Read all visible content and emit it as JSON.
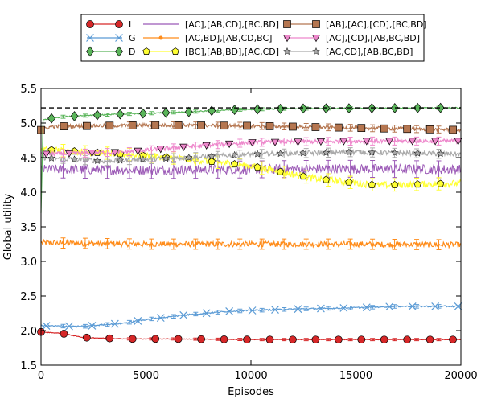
{
  "chart_data": {
    "type": "line",
    "title": "",
    "xlabel": "Episodes",
    "ylabel": "Global utility",
    "xlim": [
      0,
      20000
    ],
    "ylim": [
      1.5,
      5.5
    ],
    "xticks": [
      0,
      5000,
      10000,
      15000,
      20000
    ],
    "yticks": [
      1.5,
      2.0,
      2.5,
      3.0,
      3.5,
      4.0,
      4.5,
      5.0,
      5.5
    ],
    "xtick_labels": [
      "0",
      "5000",
      "10000",
      "15000",
      "20000"
    ],
    "ytick_labels": [
      "1.5",
      "2.0",
      "2.5",
      "3.0",
      "3.5",
      "4.0",
      "4.5",
      "5.0",
      "5.5"
    ],
    "grid": false,
    "legend_position": "top, above plot (3 columns)",
    "reference_line": {
      "value": 5.22,
      "style": "dashed",
      "color": "#000000"
    },
    "series": [
      {
        "name": "L",
        "color": "#d62728",
        "marker": "circle",
        "noise": 0.004,
        "x": [
          0,
          1000,
          2000,
          4000,
          6000,
          10000,
          15000,
          20000
        ],
        "y": [
          1.98,
          1.96,
          1.9,
          1.88,
          1.88,
          1.87,
          1.87,
          1.87
        ]
      },
      {
        "name": "G",
        "color": "#5b9bd5",
        "marker": "x",
        "noise": 0.01,
        "x": [
          0,
          2000,
          4000,
          5000,
          7000,
          9000,
          12000,
          15000,
          17000,
          20000
        ],
        "y": [
          2.07,
          2.06,
          2.11,
          2.16,
          2.23,
          2.28,
          2.31,
          2.33,
          2.35,
          2.35
        ]
      },
      {
        "name": "D",
        "color": "#5ab55a",
        "marker": "diamond",
        "noise": 0.008,
        "x": [
          0,
          100,
          1000,
          3000,
          5000,
          7000,
          9000,
          12000,
          20000
        ],
        "y": [
          3.7,
          5.05,
          5.09,
          5.12,
          5.14,
          5.16,
          5.19,
          5.21,
          5.22
        ]
      },
      {
        "name": "[AC],[AB,CD],[BC,BD]",
        "color": "#9b59b6",
        "marker": "none",
        "noise": 0.07,
        "x": [
          0,
          5000,
          10000,
          14000,
          20000
        ],
        "y": [
          4.33,
          4.32,
          4.33,
          4.34,
          4.33
        ]
      },
      {
        "name": "[AC,BD],[AB,CD,BC]",
        "color": "#ff8c1a",
        "marker": "dot",
        "noise": 0.04,
        "x": [
          0,
          5000,
          10000,
          15000,
          20000
        ],
        "y": [
          3.27,
          3.25,
          3.25,
          3.25,
          3.24
        ]
      },
      {
        "name": "[BC],[AB,BD],[AC,CD]",
        "color": "#ffff33",
        "marker": "pentagon",
        "noise": 0.05,
        "x": [
          0,
          4000,
          7000,
          10000,
          13000,
          16000,
          20000
        ],
        "y": [
          4.62,
          4.55,
          4.48,
          4.38,
          4.2,
          4.1,
          4.13
        ]
      },
      {
        "name": "[AB],[AC],[CD],[BC,BD]",
        "color": "#b57650",
        "marker": "square",
        "noise": 0.025,
        "x": [
          0,
          500,
          5000,
          10000,
          15000,
          20000
        ],
        "y": [
          4.9,
          4.95,
          4.97,
          4.96,
          4.93,
          4.9
        ]
      },
      {
        "name": "[AC],[CD],[AB,BC,BD]",
        "color": "#ee88cc",
        "marker": "triangle-down",
        "noise": 0.03,
        "x": [
          0,
          4000,
          7000,
          10000,
          15000,
          20000
        ],
        "y": [
          4.55,
          4.58,
          4.66,
          4.72,
          4.74,
          4.74
        ]
      },
      {
        "name": "[AC,CD],[AB,BC,BD]",
        "color": "#aaaaaa",
        "marker": "star",
        "noise": 0.035,
        "x": [
          0,
          3000,
          7000,
          10000,
          15000,
          20000
        ],
        "y": [
          4.5,
          4.45,
          4.5,
          4.55,
          4.58,
          4.55
        ]
      }
    ]
  }
}
